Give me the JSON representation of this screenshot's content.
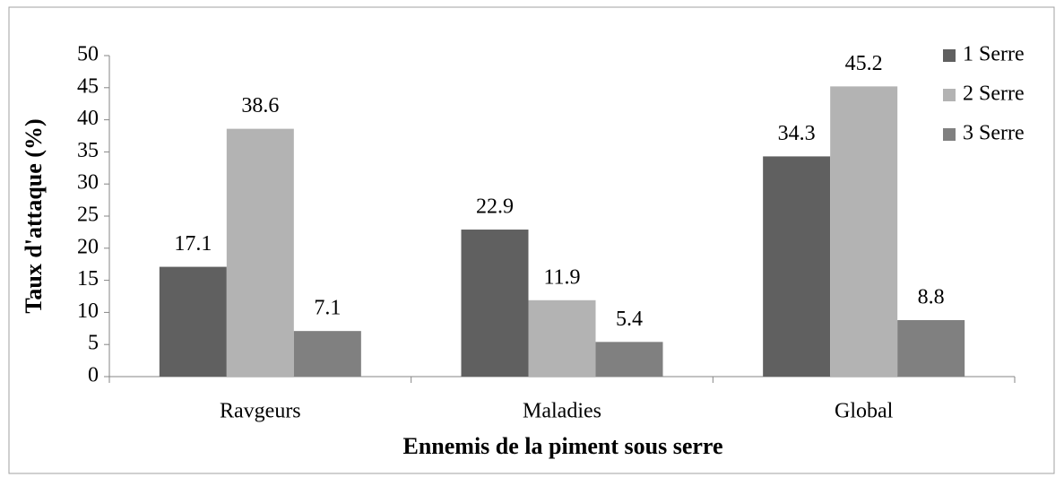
{
  "chart_data": {
    "type": "bar",
    "xlabel": "Ennemis de la piment sous serre",
    "ylabel": "Taux d'attaque (%)",
    "categories": [
      "Ravgeurs",
      "Maladies",
      "Global"
    ],
    "series": [
      {
        "name": "1 Serre",
        "color": "#606060",
        "values": [
          17.1,
          22.9,
          34.3
        ]
      },
      {
        "name": "2 Serre",
        "color": "#b3b3b3",
        "values": [
          38.6,
          11.9,
          45.2
        ]
      },
      {
        "name": "3 Serre",
        "color": "#808080",
        "values": [
          7.1,
          5.4,
          8.8
        ]
      }
    ],
    "ylim": [
      0,
      50
    ],
    "yticks": [
      0,
      5,
      10,
      15,
      20,
      25,
      30,
      35,
      40,
      45,
      50
    ],
    "grid": false,
    "legend": "right"
  }
}
